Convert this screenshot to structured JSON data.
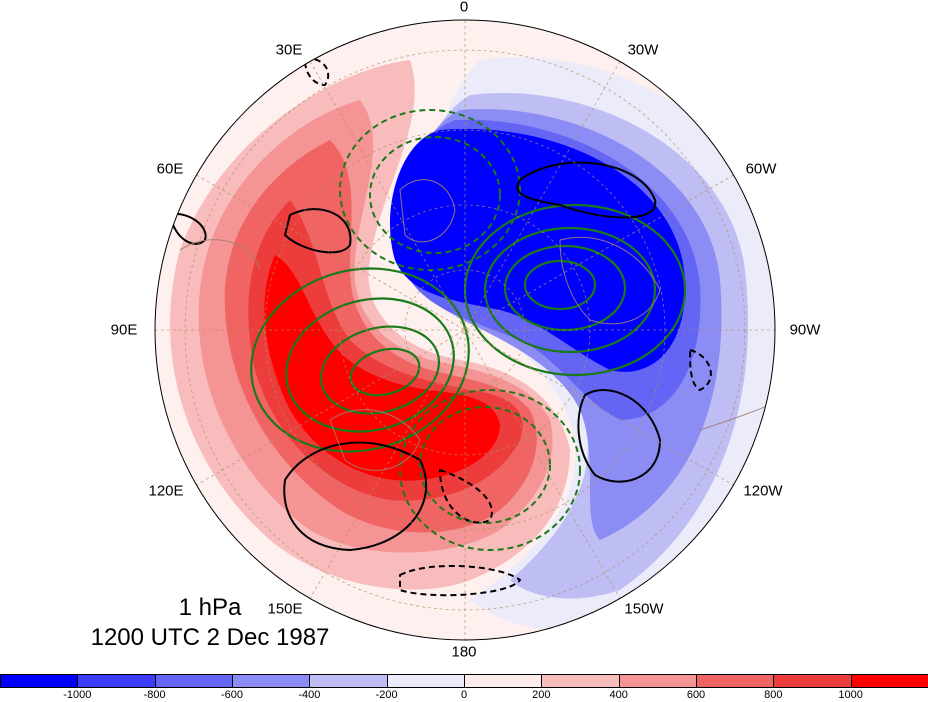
{
  "map": {
    "projection": "north-polar-stereographic",
    "level_label": "1 hPa",
    "time_label": "1200 UTC 2 Dec 1987",
    "longitude_labels": [
      "0",
      "30W",
      "60W",
      "90W",
      "120W",
      "150W",
      "180",
      "150E",
      "120E",
      "90E",
      "60E",
      "30E"
    ]
  },
  "colorbar": {
    "colors": [
      "#0000ff",
      "#3c3cfa",
      "#6464f5",
      "#8c8cf5",
      "#bebef5",
      "#ebebfa",
      "#fcecec",
      "#f8bcbc",
      "#f49494",
      "#f06464",
      "#ec3c3c",
      "#ff0000"
    ],
    "ticks": [
      "-1000",
      "-800",
      "-600",
      "-400",
      "-200",
      "0",
      "200",
      "400",
      "600",
      "800",
      "1000"
    ]
  },
  "contours": {
    "shading_colors": {
      "strong_negative": "#0000ff",
      "negative": "#6464f5",
      "weak_negative": "#bebef5",
      "strong_positive": "#ff0000",
      "positive": "#f06464",
      "weak_positive": "#f8bcbc"
    },
    "green_line_color": "#1a7a1a",
    "black_line_color": "#000000",
    "coast_color": "#a08070"
  }
}
